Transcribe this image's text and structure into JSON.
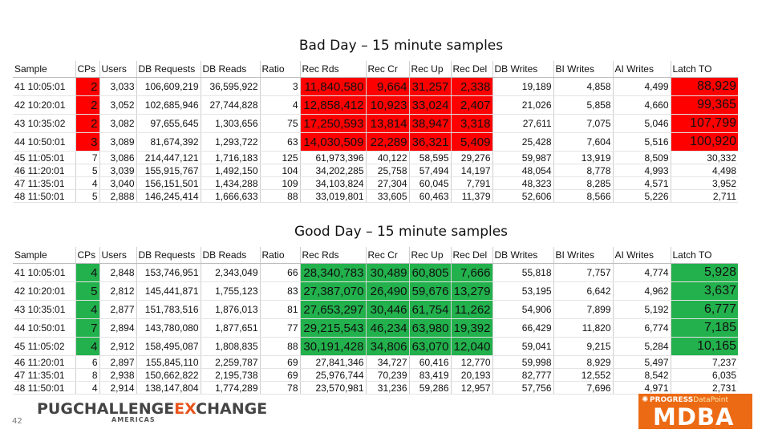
{
  "bad_day": {
    "title": "Bad Day – 15 minute samples",
    "headers": [
      "Sample",
      "CPs",
      "Users",
      "DB Requests",
      "DB Reads",
      "Ratio",
      "Rec Rds",
      "Rec Cr",
      "Rec Up",
      "Rec Del",
      "DB Writes",
      "BI Writes",
      "AI Writes",
      "Latch TO"
    ],
    "rows": [
      [
        "41 10:05:01",
        "2",
        "3,033",
        "106,609,219",
        "36,595,922",
        "3",
        "11,840,580",
        "9,664",
        "31,257",
        "2,338",
        "19,189",
        "4,858",
        "4,499",
        "88,929"
      ],
      [
        "42 10:20:01",
        "2",
        "3,052",
        "102,685,946",
        "27,744,828",
        "4",
        "12,858,412",
        "10,923",
        "33,024",
        "2,407",
        "21,026",
        "5,858",
        "4,660",
        "99,365"
      ],
      [
        "43 10:35:02",
        "2",
        "3,082",
        "97,655,645",
        "1,303,656",
        "75",
        "17,250,593",
        "13,814",
        "38,947",
        "3,318",
        "27,611",
        "7,075",
        "5,046",
        "107,799"
      ],
      [
        "44 10:50:01",
        "3",
        "3,089",
        "81,674,392",
        "1,293,722",
        "63",
        "14,030,509",
        "22,289",
        "36,321",
        "5,409",
        "25,428",
        "7,604",
        "5,516",
        "100,920"
      ],
      [
        "45 11:05:01",
        "7",
        "3,086",
        "214,447,121",
        "1,716,183",
        "125",
        "61,973,396",
        "40,122",
        "58,595",
        "29,276",
        "59,987",
        "13,919",
        "8,509",
        "30,332"
      ],
      [
        "46 11:20:01",
        "5",
        "3,039",
        "155,915,767",
        "1,492,150",
        "104",
        "34,202,285",
        "25,758",
        "57,494",
        "14,197",
        "48,054",
        "8,778",
        "4,993",
        "4,498"
      ],
      [
        "47 11:35:01",
        "4",
        "3,040",
        "156,151,501",
        "1,434,288",
        "109",
        "34,103,824",
        "27,304",
        "60,045",
        "7,791",
        "48,323",
        "8,285",
        "4,571",
        "3,952"
      ],
      [
        "48 11:50:01",
        "5",
        "2,888",
        "146,245,414",
        "1,666,633",
        "88",
        "33,019,801",
        "33,605",
        "60,463",
        "11,379",
        "52,606",
        "8,566",
        "5,226",
        "2,711"
      ]
    ]
  },
  "good_day": {
    "title": "Good Day – 15 minute samples",
    "headers": [
      "Sample",
      "CPs",
      "Users",
      "DB Requests",
      "DB Reads",
      "Ratio",
      "Rec Rds",
      "Rec Cr",
      "Rec Up",
      "Rec Del",
      "DB Writes",
      "BI Writes",
      "AI Writes",
      "Latch TO"
    ],
    "rows": [
      [
        "41 10:05:01",
        "4",
        "2,848",
        "153,746,951",
        "2,343,049",
        "66",
        "28,340,783",
        "30,489",
        "60,805",
        "7,666",
        "55,818",
        "7,757",
        "4,774",
        "5,928"
      ],
      [
        "42 10:20:01",
        "5",
        "2,812",
        "145,441,871",
        "1,755,123",
        "83",
        "27,387,070",
        "26,490",
        "59,676",
        "13,279",
        "53,195",
        "6,642",
        "4,962",
        "3,637"
      ],
      [
        "43 10:35:01",
        "4",
        "2,877",
        "151,783,516",
        "1,876,013",
        "81",
        "27,653,297",
        "30,446",
        "61,754",
        "11,262",
        "54,906",
        "7,899",
        "5,192",
        "6,777"
      ],
      [
        "44 10:50:01",
        "7",
        "2,894",
        "143,780,080",
        "1,877,651",
        "77",
        "29,215,543",
        "46,234",
        "63,980",
        "19,392",
        "66,429",
        "11,820",
        "6,774",
        "7,185"
      ],
      [
        "45 11:05:02",
        "4",
        "2,912",
        "158,495,087",
        "1,808,835",
        "88",
        "30,191,428",
        "34,806",
        "63,070",
        "12,040",
        "59,041",
        "9,215",
        "5,284",
        "10,165"
      ],
      [
        "46 11:20:01",
        "6",
        "2,897",
        "155,845,110",
        "2,259,787",
        "69",
        "27,841,346",
        "34,727",
        "60,416",
        "12,770",
        "59,998",
        "8,929",
        "5,497",
        "7,237"
      ],
      [
        "47 11:35:01",
        "8",
        "2,938",
        "150,662,822",
        "2,195,738",
        "69",
        "25,976,744",
        "70,239",
        "83,419",
        "20,193",
        "82,777",
        "12,552",
        "8,542",
        "6,035"
      ],
      [
        "48 11:50:01",
        "4",
        "2,914",
        "138,147,804",
        "1,774,289",
        "78",
        "23,570,981",
        "31,236",
        "59,286",
        "12,957",
        "57,756",
        "7,696",
        "4,971",
        "2,731"
      ]
    ]
  },
  "highlight_colors": {
    "bad": "#ff0000",
    "good": "#22b14c"
  },
  "footer": {
    "page_number": "42",
    "logo_part1": "PUGCHALLENGE",
    "logo_part2": "E",
    "logo_part3": "X",
    "logo_part4": "CHANGE",
    "logo_sub": "AMERICAS",
    "sponsor_line_a": "PROGRESS",
    "sponsor_line_b": "DataPoint",
    "sponsor_brand": "MDBA",
    "sponsor_icon": "star-burst-icon"
  }
}
